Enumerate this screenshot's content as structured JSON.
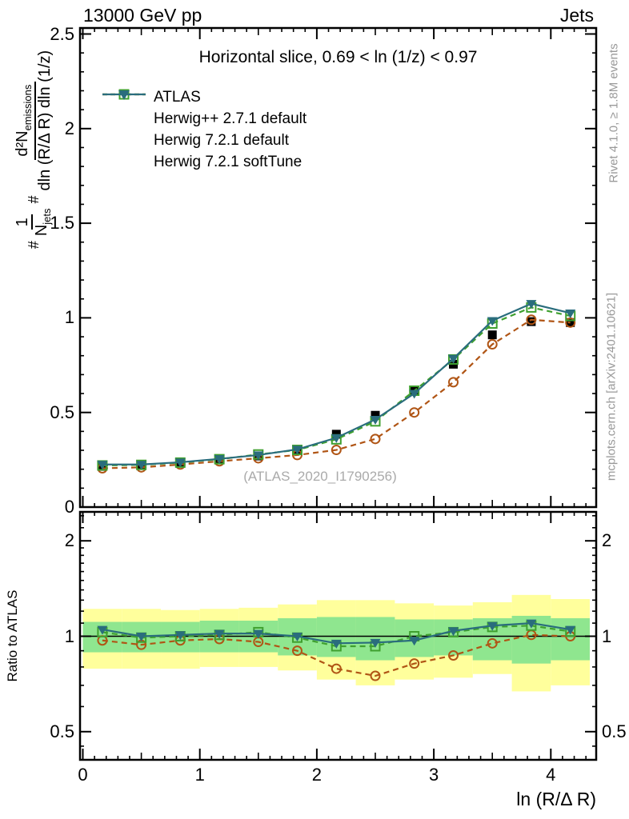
{
  "header": {
    "left": "13000 GeV pp",
    "right": "Jets"
  },
  "side_texts": {
    "top_right": "Rivet 4.1.0, ≥ 1.8M events",
    "bottom_right": "mcplots.cern.ch [arXiv:2401.10621]"
  },
  "main_panel": {
    "title": "Horizontal slice, 0.69 < ln (1/z) < 0.97",
    "watermark": "(ATLAS_2020_I1790256)",
    "ylabel": {
      "hash1": "#",
      "frac1_num": "1",
      "frac1_den": "N",
      "frac1_den_sub": "jets",
      "hash2": "#",
      "frac2_num": "d²N",
      "frac2_num_sub": "emissions",
      "frac2_den": "dln (R/Δ R) dln (1/z)"
    }
  },
  "ratio_panel": {
    "ylabel": "Ratio to ATLAS"
  },
  "xaxis": {
    "label": "ln (R/Δ R)",
    "ticks": [
      0,
      1,
      2,
      3,
      4
    ],
    "range": [
      0,
      4.39
    ]
  },
  "legend": {
    "entries": [
      {
        "label": "ATLAS",
        "marker": "filled-square",
        "line": "none",
        "color": "#000000"
      },
      {
        "label": "Herwig++ 2.7.1 default",
        "marker": "open-circle",
        "line": "dashed",
        "color": "#b05515"
      },
      {
        "label": "Herwig 7.2.1 default",
        "marker": "open-square",
        "line": "dashed",
        "color": "#3fa02f"
      },
      {
        "label": "Herwig 7.2.1 softTune",
        "marker": "filled-triangle-down",
        "line": "solid",
        "color": "#2a6d7d"
      }
    ]
  },
  "chart_data": {
    "type": "line",
    "x": [
      0.167,
      0.5,
      0.833,
      1.167,
      1.5,
      1.833,
      2.167,
      2.5,
      2.833,
      3.167,
      3.5,
      3.833,
      4.167
    ],
    "series": [
      {
        "name": "ATLAS",
        "marker": "filled-square",
        "line": "none",
        "color": "#000000",
        "values": [
          0.215,
          0.225,
          0.235,
          0.25,
          0.27,
          0.305,
          0.385,
          0.485,
          0.615,
          0.755,
          0.91,
          0.98,
          0.975
        ],
        "ratio": null
      },
      {
        "name": "Herwig++ 2.7.1 default",
        "marker": "open-circle",
        "line": "dashed",
        "color": "#b05515",
        "values": [
          0.205,
          0.21,
          0.225,
          0.242,
          0.258,
          0.275,
          0.302,
          0.36,
          0.5,
          0.66,
          0.86,
          0.99,
          0.975
        ],
        "ratio": [
          0.97,
          0.94,
          0.97,
          0.98,
          0.96,
          0.9,
          0.79,
          0.75,
          0.82,
          0.87,
          0.95,
          1.01,
          1.0
        ]
      },
      {
        "name": "Herwig 7.2.1 default",
        "marker": "open-square",
        "line": "dashed",
        "color": "#3fa02f",
        "values": [
          0.22,
          0.223,
          0.235,
          0.253,
          0.278,
          0.302,
          0.358,
          0.453,
          0.615,
          0.78,
          0.97,
          1.055,
          1.01
        ],
        "ratio": [
          1.03,
          0.99,
          1.0,
          1.01,
          1.03,
          0.99,
          0.93,
          0.93,
          1.0,
          1.03,
          1.07,
          1.08,
          1.035
        ]
      },
      {
        "name": "Herwig 7.2.1 softTune",
        "marker": "filled-triangle-down",
        "line": "solid",
        "color": "#2a6d7d",
        "values": [
          0.225,
          0.225,
          0.237,
          0.255,
          0.275,
          0.305,
          0.366,
          0.463,
          0.6,
          0.785,
          0.985,
          1.075,
          1.025
        ],
        "ratio": [
          1.05,
          1.0,
          1.01,
          1.02,
          1.02,
          1.0,
          0.95,
          0.955,
          0.97,
          1.04,
          1.08,
          1.1,
          1.05
        ]
      }
    ],
    "main_axis": {
      "ylim": [
        0,
        2.53
      ],
      "yticks": [
        0,
        0.5,
        1,
        1.5,
        2,
        2.5
      ],
      "minor_step": 0.1
    },
    "ratio_axis": {
      "scale": "log",
      "ylim": [
        0.41,
        2.47
      ],
      "yticks": [
        0.5,
        1,
        2
      ],
      "minor_ticks": [
        0.45,
        0.6,
        0.7,
        0.8,
        0.9,
        1.1,
        1.2,
        1.3,
        1.4,
        1.5,
        1.6,
        1.7,
        1.8,
        1.9,
        2.2,
        2.4
      ],
      "reference_line": 1
    },
    "bands": {
      "bin_edges": [
        0,
        0.333,
        0.667,
        1.0,
        1.333,
        1.667,
        2.0,
        2.333,
        2.667,
        3.0,
        3.333,
        3.667,
        4.0,
        4.333
      ],
      "yellow": {
        "color": "#ffff9c",
        "lo": [
          0.79,
          0.79,
          0.79,
          0.8,
          0.8,
          0.78,
          0.73,
          0.7,
          0.73,
          0.74,
          0.76,
          0.67,
          0.7
        ],
        "hi": [
          1.22,
          1.22,
          1.21,
          1.22,
          1.23,
          1.26,
          1.3,
          1.3,
          1.27,
          1.25,
          1.28,
          1.35,
          1.31
        ]
      },
      "green": {
        "color": "#8fe68f",
        "lo": [
          0.89,
          0.89,
          0.89,
          0.89,
          0.89,
          0.87,
          0.86,
          0.84,
          0.86,
          0.87,
          0.84,
          0.82,
          0.84
        ],
        "hi": [
          1.11,
          1.11,
          1.11,
          1.12,
          1.12,
          1.14,
          1.15,
          1.15,
          1.13,
          1.13,
          1.14,
          1.16,
          1.14
        ]
      }
    }
  }
}
